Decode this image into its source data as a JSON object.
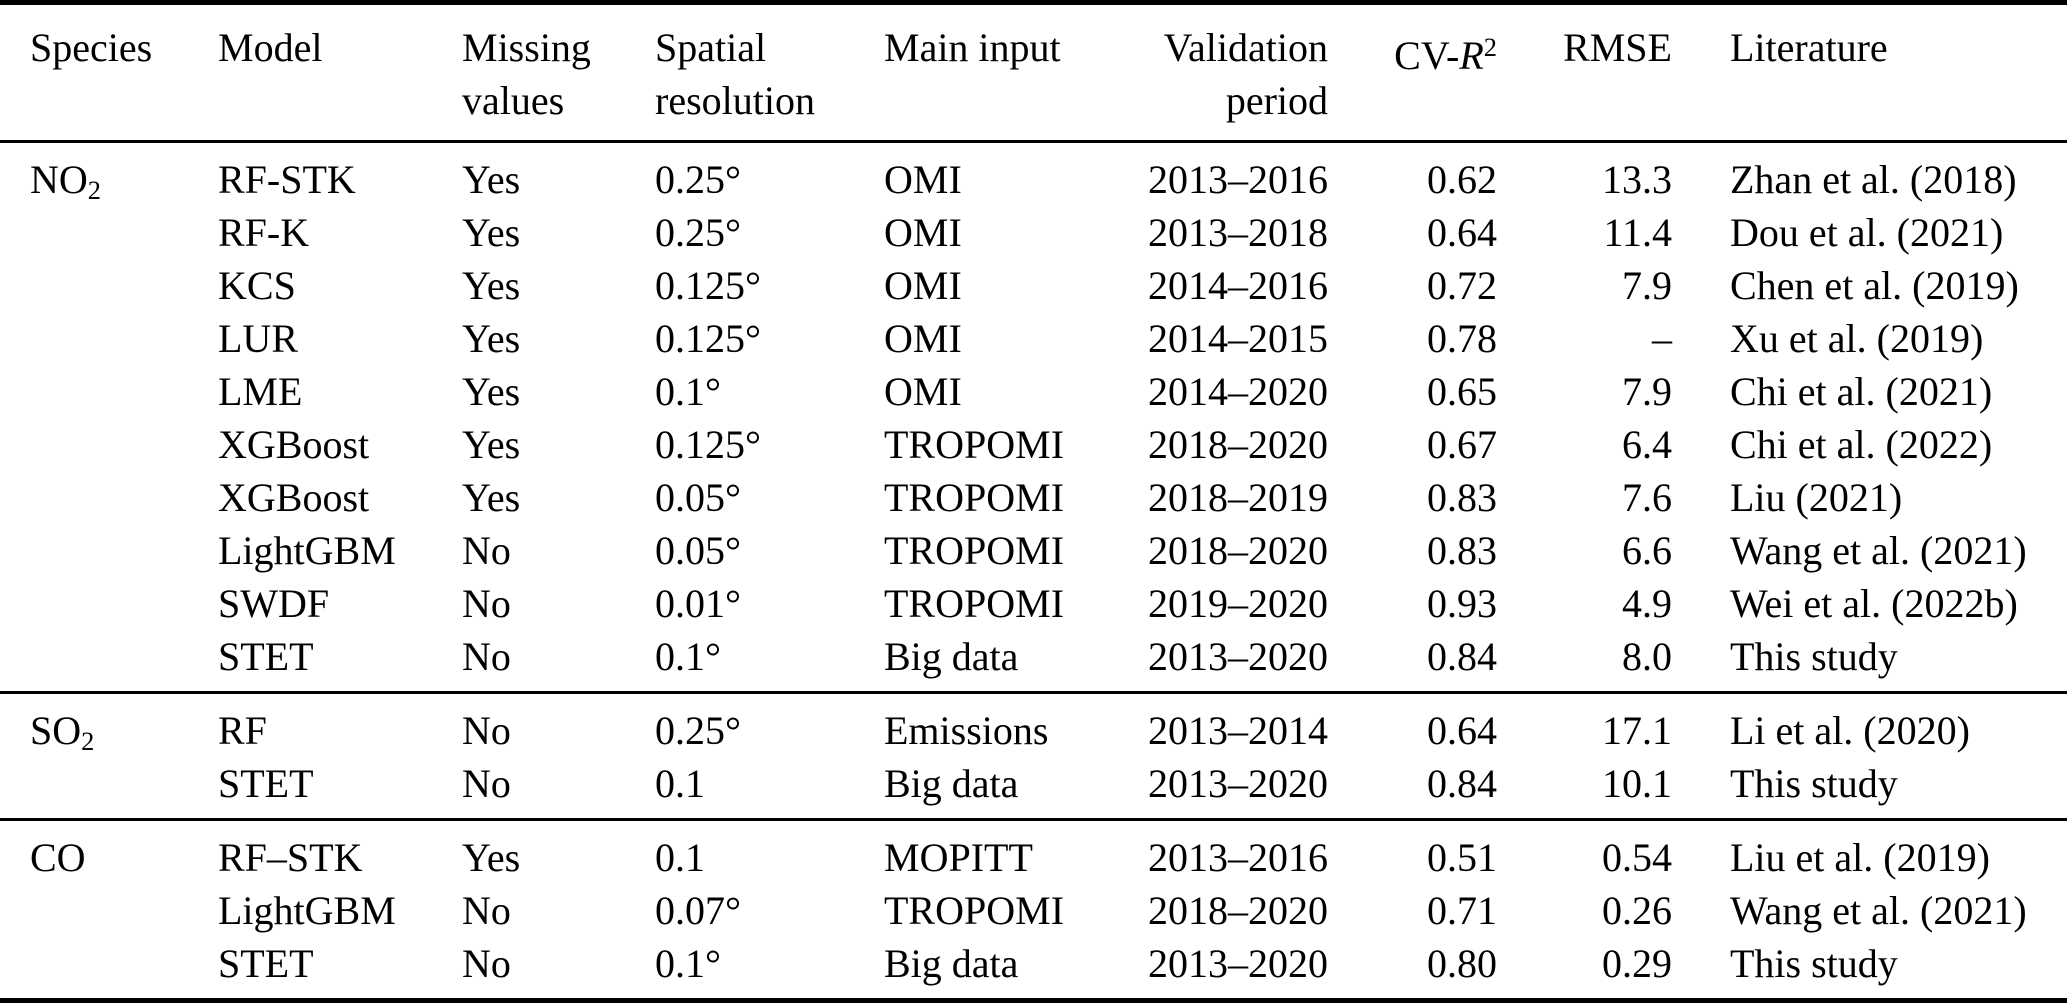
{
  "table": {
    "columns": [
      {
        "id": "species",
        "lines": [
          [
            {
              "t": "Species"
            }
          ]
        ]
      },
      {
        "id": "model",
        "lines": [
          [
            {
              "t": "Model"
            }
          ]
        ]
      },
      {
        "id": "missing",
        "lines": [
          [
            {
              "t": "Missing"
            }
          ],
          [
            {
              "t": "values"
            }
          ]
        ]
      },
      {
        "id": "resolution",
        "lines": [
          [
            {
              "t": "Spatial"
            }
          ],
          [
            {
              "t": "resolution"
            }
          ]
        ]
      },
      {
        "id": "input",
        "lines": [
          [
            {
              "t": "Main input"
            }
          ]
        ]
      },
      {
        "id": "period",
        "lines": [
          [
            {
              "t": "Validation"
            }
          ],
          [
            {
              "t": "period"
            }
          ]
        ]
      },
      {
        "id": "cvr2",
        "lines": [
          [
            {
              "t": "CV-"
            },
            {
              "t": "R",
              "style": "italic"
            },
            {
              "t": "2",
              "style": "sup"
            }
          ]
        ]
      },
      {
        "id": "rmse",
        "lines": [
          [
            {
              "t": "RMSE"
            }
          ]
        ]
      },
      {
        "id": "literature",
        "lines": [
          [
            {
              "t": "Literature"
            }
          ]
        ]
      }
    ],
    "sections": [
      {
        "species": [
          {
            "t": "NO"
          },
          {
            "t": "2",
            "style": "sub"
          }
        ],
        "rows": [
          {
            "model": "RF-STK",
            "missing": "Yes",
            "resolution": "0.25°",
            "input": "OMI",
            "period": "2013–2016",
            "cvr2": "0.62",
            "rmse": "13.3",
            "literature": "Zhan et al. (2018)"
          },
          {
            "model": "RF-K",
            "missing": "Yes",
            "resolution": "0.25°",
            "input": "OMI",
            "period": "2013–2018",
            "cvr2": "0.64",
            "rmse": "11.4",
            "literature": "Dou et al. (2021)"
          },
          {
            "model": "KCS",
            "missing": "Yes",
            "resolution": "0.125°",
            "input": "OMI",
            "period": "2014–2016",
            "cvr2": "0.72",
            "rmse": "7.9",
            "literature": "Chen et al. (2019)"
          },
          {
            "model": "LUR",
            "missing": "Yes",
            "resolution": "0.125°",
            "input": "OMI",
            "period": "2014–2015",
            "cvr2": "0.78",
            "rmse": "–",
            "literature": "Xu et al. (2019)"
          },
          {
            "model": "LME",
            "missing": "Yes",
            "resolution": "0.1°",
            "input": "OMI",
            "period": "2014–2020",
            "cvr2": "0.65",
            "rmse": "7.9",
            "literature": "Chi et al. (2021)"
          },
          {
            "model": "XGBoost",
            "missing": "Yes",
            "resolution": "0.125°",
            "input": "TROPOMI",
            "period": "2018–2020",
            "cvr2": "0.67",
            "rmse": "6.4",
            "literature": "Chi et al. (2022)"
          },
          {
            "model": "XGBoost",
            "missing": "Yes",
            "resolution": "0.05°",
            "input": "TROPOMI",
            "period": "2018–2019",
            "cvr2": "0.83",
            "rmse": "7.6",
            "literature": "Liu (2021)"
          },
          {
            "model": "LightGBM",
            "missing": "No",
            "resolution": "0.05°",
            "input": "TROPOMI",
            "period": "2018–2020",
            "cvr2": "0.83",
            "rmse": "6.6",
            "literature": "Wang et al. (2021)"
          },
          {
            "model": "SWDF",
            "missing": "No",
            "resolution": "0.01°",
            "input": "TROPOMI",
            "period": "2019–2020",
            "cvr2": "0.93",
            "rmse": "4.9",
            "literature": "Wei et al. (2022b)"
          },
          {
            "model": "STET",
            "missing": "No",
            "resolution": "0.1°",
            "input": "Big data",
            "period": "2013–2020",
            "cvr2": "0.84",
            "rmse": "8.0",
            "literature": "This study"
          }
        ]
      },
      {
        "species": [
          {
            "t": "SO"
          },
          {
            "t": "2",
            "style": "sub"
          }
        ],
        "rows": [
          {
            "model": "RF",
            "missing": "No",
            "resolution": "0.25°",
            "input": "Emissions",
            "period": "2013–2014",
            "cvr2": "0.64",
            "rmse": "17.1",
            "literature": "Li et al. (2020)"
          },
          {
            "model": "STET",
            "missing": "No",
            "resolution": "0.1",
            "input": "Big data",
            "period": "2013–2020",
            "cvr2": "0.84",
            "rmse": "10.1",
            "literature": "This study"
          }
        ]
      },
      {
        "species": [
          {
            "t": "CO"
          }
        ],
        "rows": [
          {
            "model": "RF–STK",
            "missing": "Yes",
            "resolution": "0.1",
            "input": "MOPITT",
            "period": "2013–2016",
            "cvr2": "0.51",
            "rmse": "0.54",
            "literature": "Liu et al. (2019)"
          },
          {
            "model": "LightGBM",
            "missing": "No",
            "resolution": "0.07°",
            "input": "TROPOMI",
            "period": "2018–2020",
            "cvr2": "0.71",
            "rmse": "0.26",
            "literature": "Wang et al. (2021)"
          },
          {
            "model": "STET",
            "missing": "No",
            "resolution": "0.1°",
            "input": "Big data",
            "period": "2013–2020",
            "cvr2": "0.80",
            "rmse": "0.29",
            "literature": "This study"
          }
        ]
      }
    ]
  }
}
